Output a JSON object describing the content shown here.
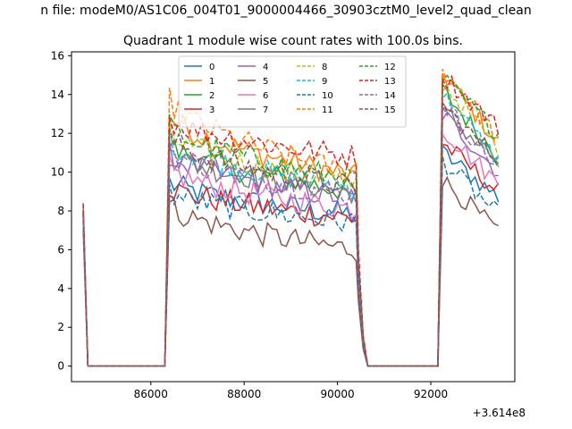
{
  "figure": {
    "suptitle": "n file: modeM0/AS1C06_004T01_9000004466_30903cztM0_level2_quad_clean",
    "offset_label": "+3.614e8"
  },
  "chart_data": {
    "type": "line",
    "title": "Quadrant 1 module wise count rates with 100.0s bins.",
    "xlabel": "",
    "ylabel": "",
    "xlim": [
      84300,
      93800
    ],
    "ylim": [
      -0.8,
      16.2
    ],
    "x_ticks": [
      86000,
      88000,
      90000,
      92000
    ],
    "x_tick_labels": [
      "86000",
      "88000",
      "90000",
      "92000"
    ],
    "y_ticks": [
      0,
      2,
      4,
      6,
      8,
      10,
      12,
      14,
      16
    ],
    "y_tick_labels": [
      "0",
      "2",
      "4",
      "6",
      "8",
      "10",
      "12",
      "14",
      "16"
    ],
    "grid": false,
    "legend": {
      "placement": "upper-center",
      "columns": 4
    },
    "segments": [
      {
        "x_start": 84550,
        "x_end": 84650,
        "kind": "decay"
      },
      {
        "x_start": 84650,
        "x_end": 86350,
        "kind": "zero"
      },
      {
        "x_start": 86350,
        "x_end": 90450,
        "kind": "active"
      },
      {
        "x_start": 90450,
        "x_end": 90650,
        "kind": "decay"
      },
      {
        "x_start": 90650,
        "x_end": 92150,
        "kind": "zero"
      },
      {
        "x_start": 92150,
        "x_end": 93450,
        "kind": "active"
      }
    ],
    "series": [
      {
        "name": "0",
        "color": "#1f77b4",
        "dashed": false,
        "peak_start": 8.3,
        "start_level": 9.5,
        "end_level": 7.8,
        "second_peak": 11.0,
        "second_end": 8.7
      },
      {
        "name": "1",
        "color": "#ff7f0e",
        "dashed": false,
        "peak_start": 8.0,
        "start_level": 13.0,
        "end_level": 9.8,
        "second_peak": 15.1,
        "second_end": 11.5
      },
      {
        "name": "2",
        "color": "#2ca02c",
        "dashed": false,
        "peak_start": 7.9,
        "start_level": 11.5,
        "end_level": 9.0,
        "second_peak": 14.2,
        "second_end": 10.8
      },
      {
        "name": "3",
        "color": "#d62728",
        "dashed": false,
        "peak_start": 7.7,
        "start_level": 9.3,
        "end_level": 7.6,
        "second_peak": 11.5,
        "second_end": 9.0
      },
      {
        "name": "4",
        "color": "#9467bd",
        "dashed": false,
        "peak_start": 7.8,
        "start_level": 11.0,
        "end_level": 8.6,
        "second_peak": 13.0,
        "second_end": 10.0
      },
      {
        "name": "5",
        "color": "#8c564b",
        "dashed": false,
        "peak_start": 7.0,
        "start_level": 8.3,
        "end_level": 6.0,
        "second_peak": 9.6,
        "second_end": 6.9
      },
      {
        "name": "6",
        "color": "#e377c2",
        "dashed": false,
        "peak_start": 7.6,
        "start_level": 10.2,
        "end_level": 8.1,
        "second_peak": 12.2,
        "second_end": 9.4
      },
      {
        "name": "7",
        "color": "#7f7f7f",
        "dashed": false,
        "peak_start": 7.8,
        "start_level": 11.0,
        "end_level": 9.0,
        "second_peak": 13.2,
        "second_end": 10.5
      },
      {
        "name": "8",
        "color": "#bcbd22",
        "dashed": true,
        "peak_start": 8.0,
        "start_level": 12.0,
        "end_level": 9.4,
        "second_peak": 14.6,
        "second_end": 11.2
      },
      {
        "name": "9",
        "color": "#17becf",
        "dashed": true,
        "peak_start": 7.9,
        "start_level": 11.6,
        "end_level": 9.2,
        "second_peak": 14.0,
        "second_end": 10.6
      },
      {
        "name": "10",
        "color": "#1f77b4",
        "dashed": true,
        "peak_start": 7.5,
        "start_level": 9.0,
        "end_level": 7.4,
        "second_peak": 10.6,
        "second_end": 7.8
      },
      {
        "name": "11",
        "color": "#ff7f0e",
        "dashed": true,
        "peak_start": 8.1,
        "start_level": 13.8,
        "end_level": 9.9,
        "second_peak": 15.4,
        "second_end": 11.7
      },
      {
        "name": "12",
        "color": "#2ca02c",
        "dashed": true,
        "peak_start": 8.0,
        "start_level": 12.4,
        "end_level": 9.6,
        "second_peak": 14.8,
        "second_end": 12.0
      },
      {
        "name": "13",
        "color": "#d62728",
        "dashed": true,
        "peak_start": 8.4,
        "start_level": 12.8,
        "end_level": 10.8,
        "second_peak": 15.0,
        "second_end": 12.3
      },
      {
        "name": "14",
        "color": "#9467bd",
        "dashed": true,
        "peak_start": 7.8,
        "start_level": 11.2,
        "end_level": 8.8,
        "second_peak": 13.6,
        "second_end": 10.2
      },
      {
        "name": "15",
        "color": "#8c564b",
        "dashed": true,
        "peak_start": 7.9,
        "start_level": 11.8,
        "end_level": 9.2,
        "second_peak": 13.4,
        "second_end": 10.6
      }
    ]
  }
}
